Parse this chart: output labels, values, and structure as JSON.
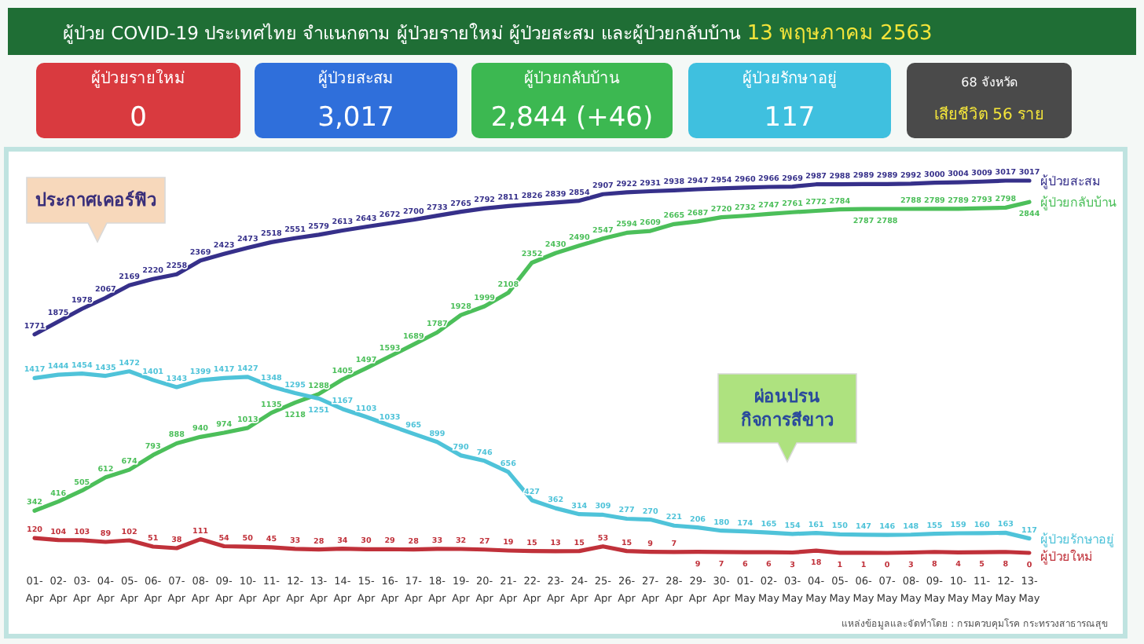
{
  "chart_data": [
    {
      "type": "other",
      "title": "ผู้ป่วย COVID-19 ประเทศไทย จำแนกตาม ผู้ป่วยรายใหม่ ผู้ป่วยสะสม และผู้ป่วยกลับบ้าน",
      "subtitle": "13 พฤษภาคม 2563",
      "categories": [
        "ผู้ป่วยรายใหม่",
        "ผู้ป่วยสะสม",
        "ผู้ป่วยกลับบ้าน",
        "ผู้ป่วยรักษาอยู่",
        "68 จังหวัด"
      ],
      "annotations": [
        "0",
        "3,017",
        "2,844 (+46)",
        "117",
        "เสียชีวิต 56 ราย"
      ],
      "colors": [
        "#d93a3f",
        "#2f6fdb",
        "#3cb851",
        "#3fc0df",
        "#4a4a4a"
      ]
    },
    {
      "type": "line",
      "categories": [
        "01- Apr",
        "02- Apr",
        "03- Apr",
        "04- Apr",
        "05- Apr",
        "06- Apr",
        "07- Apr",
        "08- Apr",
        "09- Apr",
        "10- Apr",
        "11- Apr",
        "12- Apr",
        "13- Apr",
        "14- Apr",
        "15- Apr",
        "16- Apr",
        "17- Apr",
        "18- Apr",
        "19- Apr",
        "20- Apr",
        "21- Apr",
        "22- Apr",
        "23- Apr",
        "24- Apr",
        "25- Apr",
        "26- Apr",
        "27- Apr",
        "28- Apr",
        "29- Apr",
        "30- Apr",
        "01- May",
        "02- May",
        "03- May",
        "04- May",
        "05- May",
        "06- May",
        "07- May",
        "08- May",
        "09- May",
        "10- May",
        "11- May",
        "12- May",
        "13- May"
      ],
      "series": [
        {
          "name": "ผู้ป่วยสะสม",
          "color": "#36308a",
          "values": [
            1771,
            1875,
            1978,
            2067,
            2169,
            2220,
            2258,
            2369,
            2423,
            2473,
            2518,
            2551,
            2579,
            2613,
            2643,
            2672,
            2700,
            2733,
            2765,
            2792,
            2811,
            2826,
            2839,
            2854,
            2907,
            2922,
            2931,
            2938,
            2947,
            2954,
            2960,
            2966,
            2969,
            2987,
            2988,
            2989,
            2989,
            2992,
            3000,
            3004,
            3009,
            3017,
            3017
          ]
        },
        {
          "name": "ผู้ป่วยกลับบ้าน",
          "color": "#4cbf5a",
          "values": [
            342,
            416,
            505,
            612,
            674,
            793,
            888,
            940,
            974,
            1013,
            1135,
            1218,
            1288,
            1405,
            1497,
            1593,
            1689,
            1787,
            1928,
            1999,
            2108,
            2352,
            2430,
            2490,
            2547,
            2594,
            2609,
            2665,
            2687,
            2720,
            2732,
            2747,
            2761,
            2772,
            2784,
            2787,
            2788,
            2788,
            2789,
            2789,
            2793,
            2798,
            2844
          ]
        },
        {
          "name": "ผู้ป่วยรักษาอยู่",
          "color": "#4fc3d9",
          "values": [
            1417,
            1444,
            1454,
            1435,
            1472,
            1401,
            1343,
            1399,
            1417,
            1427,
            1348,
            1295,
            1251,
            1167,
            1103,
            1033,
            965,
            899,
            790,
            746,
            656,
            427,
            362,
            314,
            309,
            277,
            270,
            221,
            206,
            180,
            174,
            165,
            154,
            161,
            150,
            147,
            146,
            148,
            155,
            159,
            160,
            163,
            117
          ]
        },
        {
          "name": "ผู้ป่วยใหม่",
          "color": "#c0313a",
          "values": [
            120,
            104,
            103,
            89,
            102,
            51,
            38,
            111,
            54,
            50,
            45,
            33,
            28,
            34,
            30,
            29,
            28,
            33,
            32,
            27,
            19,
            15,
            13,
            15,
            53,
            15,
            9,
            7,
            9,
            7,
            6,
            6,
            3,
            18,
            1,
            1,
            0,
            3,
            8,
            4,
            5,
            8,
            0
          ]
        }
      ],
      "data_labels": true,
      "annotations": [
        "ประกาศเคอร์ฟิว",
        "ผ่อนปรน กิจการสีขาว",
        "แหล่งข้อมูลและจัดทำโดย : กรมควบคุมโรค กระทรวงสาธารณสุข"
      ]
    }
  ]
}
